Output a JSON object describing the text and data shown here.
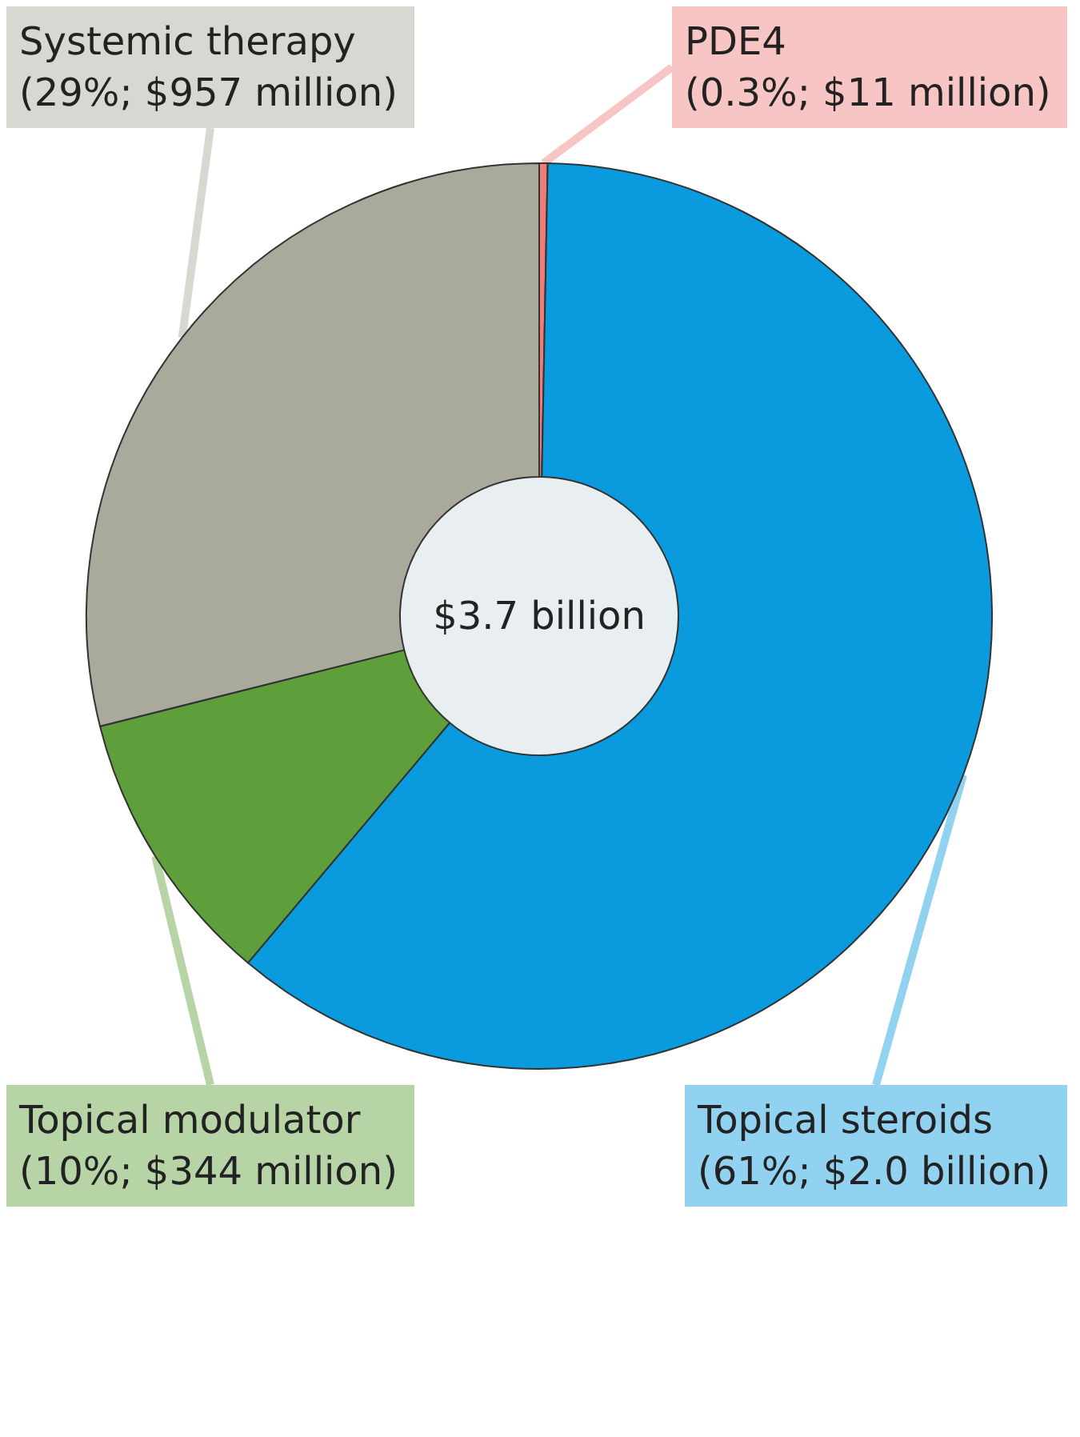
{
  "chart_data": {
    "type": "donut",
    "categories": [
      "PDE4",
      "Topical steroids",
      "Topical modulator",
      "Systemic therapy"
    ],
    "values": [
      0.3,
      61,
      10,
      29
    ],
    "value_labels": [
      "(0.3%; $11 million)",
      "(61%; $2.0 billion)",
      "(10%; $344 million)",
      "(29%; $957 million)"
    ],
    "colors": [
      "#ee7d7a",
      "#0a9ade",
      "#5e9f3c",
      "#a9a99c"
    ],
    "annotations": [
      "$3.7 billion"
    ],
    "legend": false
  }
}
